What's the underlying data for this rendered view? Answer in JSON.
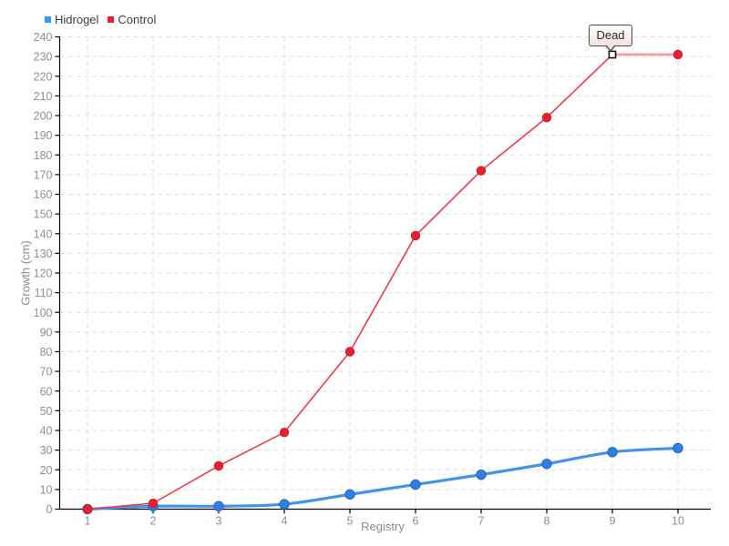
{
  "legend": {
    "items": [
      {
        "label": "Hidrogel",
        "color": "#2e9bf2"
      },
      {
        "label": "Control",
        "color": "#ee1c25"
      }
    ]
  },
  "chart_data": {
    "type": "line",
    "x": [
      1,
      2,
      3,
      4,
      5,
      6,
      7,
      8,
      9,
      10
    ],
    "series": [
      {
        "name": "Hidrogel",
        "values": [
          0,
          1.5,
          1.5,
          2.5,
          7.5,
          12.5,
          17.5,
          23,
          29,
          31
        ],
        "line_color": "#4493ea",
        "line_light_color": "#a9cdf4",
        "marker_color": "#2f80e0",
        "marker_stroke": "#2264c2"
      },
      {
        "name": "Control",
        "values": [
          0,
          3,
          22,
          39,
          80,
          139,
          172,
          199,
          231,
          231
        ],
        "line_color": "#ee3a45",
        "line_light_color": "#f7999f",
        "marker_color": "#e7202d",
        "marker_stroke": "#cf1824",
        "dead_at_x": 9
      }
    ],
    "title": "",
    "xlabel": "Registry",
    "ylabel": "Growth (cm)",
    "xlim": [
      1,
      10
    ],
    "ylim": [
      0,
      240
    ],
    "ytick_step": 10,
    "xtick_step": 1,
    "grid": true,
    "grid_color": "#dedede",
    "axis_color": "#000000",
    "tick_label_color": "#8f8f8f",
    "legend_position": "top-left",
    "annotations": [
      {
        "series": "Control",
        "x": 9,
        "y": 231,
        "label": "Dead",
        "marker": "white-square",
        "box_bg": "#f9e6e3",
        "box_border": "#4a4a4a"
      }
    ]
  }
}
